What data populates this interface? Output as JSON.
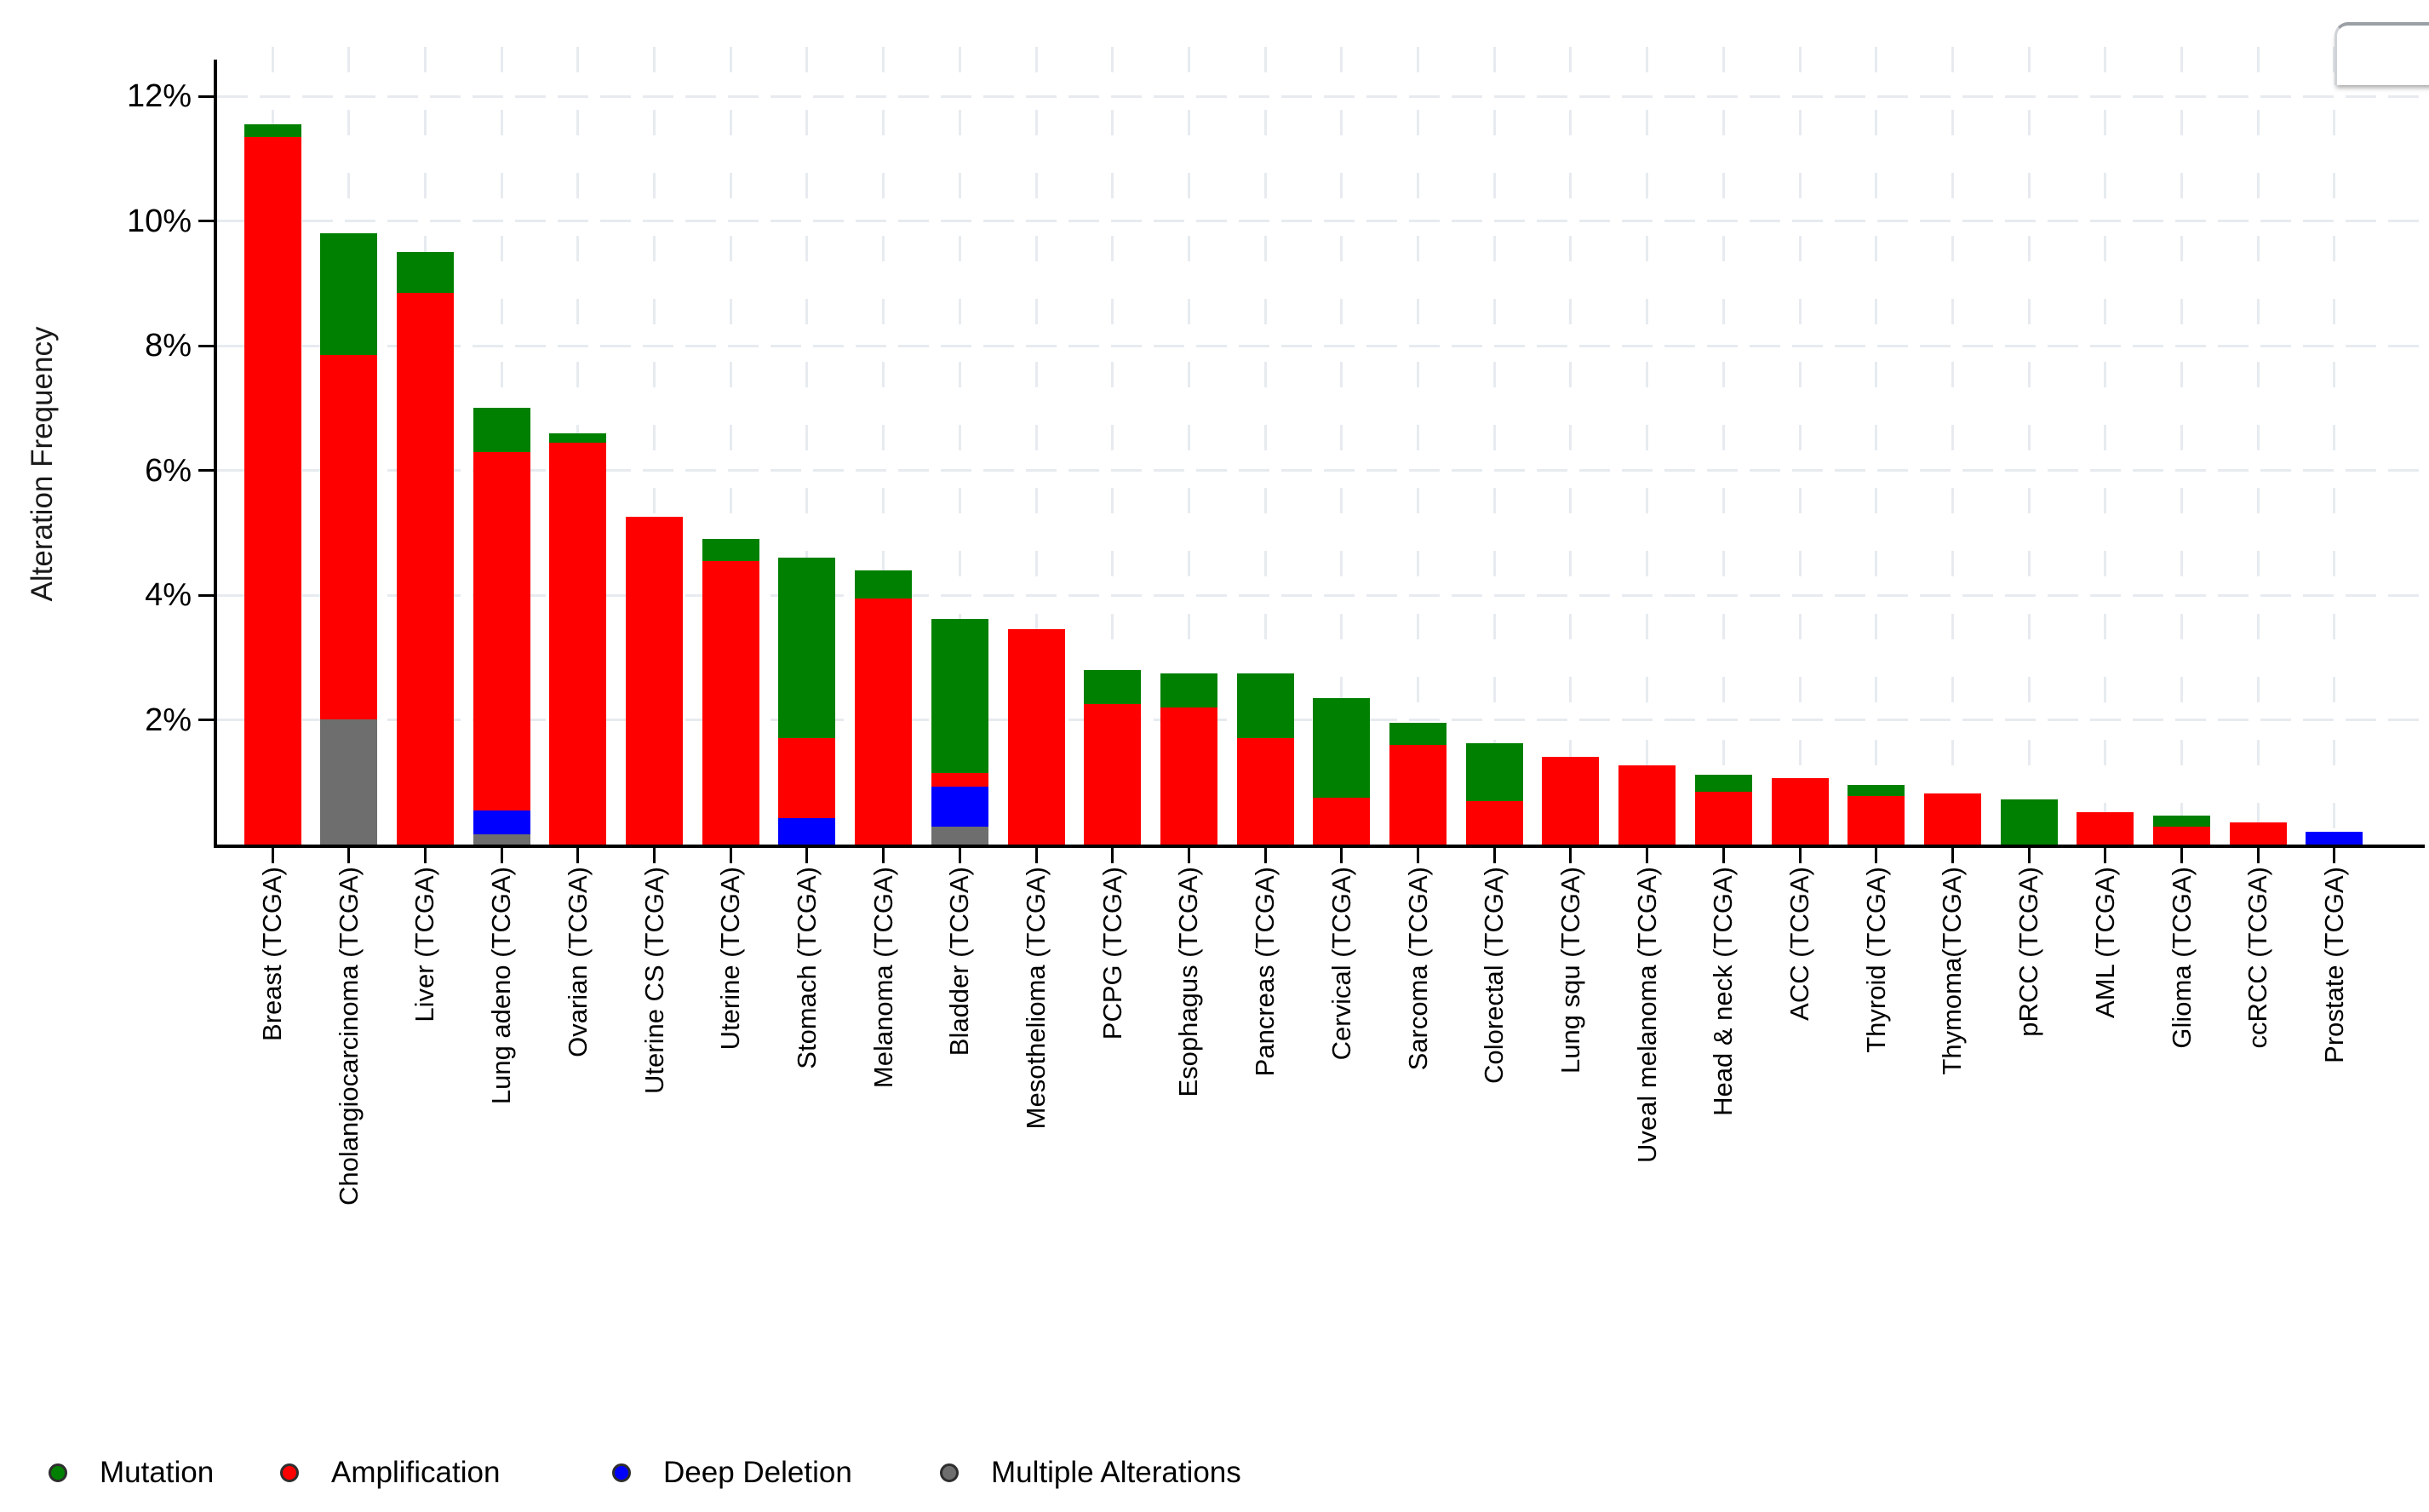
{
  "chart_data": {
    "type": "bar",
    "stacked": true,
    "title": "",
    "xlabel": "",
    "ylabel": "Alteration Frequency",
    "ylim": [
      0,
      12.4
    ],
    "ytick_values": [
      2,
      4,
      6,
      8,
      10,
      12
    ],
    "ytick_labels": [
      "2%",
      "4%",
      "6%",
      "8%",
      "10%",
      "12%"
    ],
    "grid": true,
    "legend_position": "bottom",
    "categories": [
      "Breast (TCGA)",
      "Cholangiocarcinoma (TCGA)",
      "Liver (TCGA)",
      "Lung adeno (TCGA)",
      "Ovarian (TCGA)",
      "Uterine CS (TCGA)",
      "Uterine (TCGA)",
      "Stomach (TCGA)",
      "Melanoma (TCGA)",
      "Bladder (TCGA)",
      "Mesothelioma (TCGA)",
      "PCPG (TCGA)",
      "Esophagus (TCGA)",
      "Pancreas (TCGA)",
      "Cervical (TCGA)",
      "Sarcoma (TCGA)",
      "Colorectal (TCGA)",
      "Lung squ (TCGA)",
      "Uveal melanoma (TCGA)",
      "Head & neck (TCGA)",
      "ACC (TCGA)",
      "Thyroid (TCGA)",
      "Thymoma(TCGA)",
      "pRCC (TCGA)",
      "AML (TCGA)",
      "Glioma (TCGA)",
      "ccRCC (TCGA)",
      "Prostate (TCGA)"
    ],
    "series": [
      {
        "name": "Mutation",
        "color": "#008000",
        "values": [
          0.2,
          1.95,
          0.65,
          0.7,
          0.15,
          0,
          0.35,
          2.9,
          0.45,
          2.47,
          0,
          0.55,
          0.55,
          1.05,
          1.6,
          0.35,
          0.92,
          0,
          0,
          0.27,
          0,
          0.18,
          0,
          0.72,
          0,
          0.18,
          0,
          0
        ]
      },
      {
        "name": "Amplification",
        "color": "#ff0000",
        "values": [
          11.35,
          5.85,
          8.85,
          5.75,
          6.45,
          5.25,
          4.55,
          1.28,
          3.95,
          0.22,
          3.45,
          2.25,
          2.2,
          1.7,
          0.75,
          1.6,
          0.7,
          1.4,
          1.27,
          0.85,
          1.06,
          0.78,
          0.82,
          0,
          0.52,
          0.28,
          0.35,
          0
        ]
      },
      {
        "name": "Deep Deletion",
        "color": "#0000ff",
        "values": [
          0,
          0,
          0,
          0.38,
          0,
          0,
          0,
          0.42,
          0,
          0.65,
          0,
          0,
          0,
          0,
          0,
          0,
          0,
          0,
          0,
          0,
          0,
          0,
          0,
          0,
          0,
          0,
          0,
          0.2
        ]
      },
      {
        "name": "Multiple Alterations",
        "color": "#6e6e6e",
        "values": [
          0,
          2.0,
          0,
          0.17,
          0,
          0,
          0,
          0,
          0,
          0.28,
          0,
          0,
          0,
          0,
          0,
          0,
          0,
          0,
          0,
          0,
          0,
          0,
          0,
          0,
          0,
          0,
          0,
          0
        ]
      }
    ],
    "stack_order_bottom_to_top": [
      "Multiple Alterations",
      "Deep Deletion",
      "Amplification",
      "Mutation"
    ],
    "legend": [
      {
        "label": "Mutation",
        "color": "#008000"
      },
      {
        "label": "Amplification",
        "color": "#ff0000"
      },
      {
        "label": "Deep Deletion",
        "color": "#0000ff"
      },
      {
        "label": "Multiple Alterations",
        "color": "#6e6e6e"
      }
    ]
  },
  "accent_colors": {
    "axis": "#000000",
    "gridline": "#e7ebf0",
    "text": "#000000"
  }
}
